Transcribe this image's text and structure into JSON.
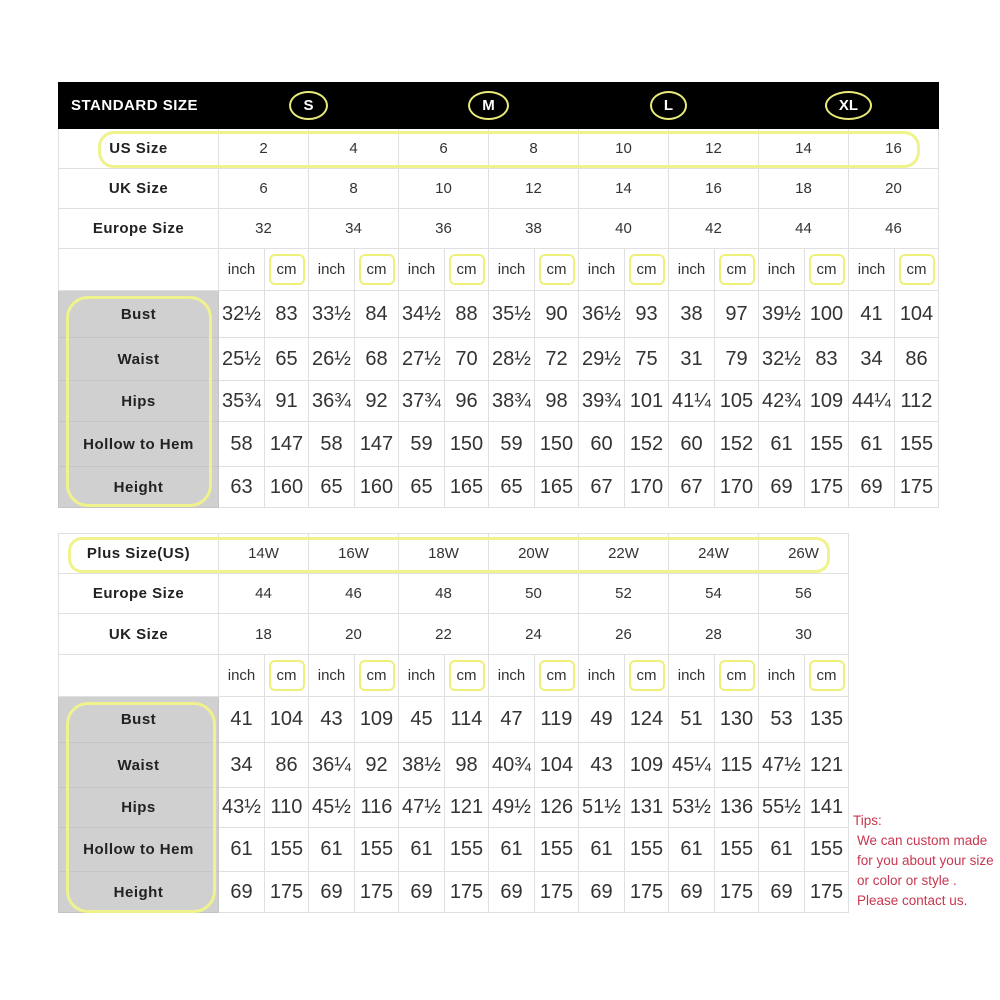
{
  "standard": {
    "title": "STANDARD SIZE",
    "groups": [
      "S",
      "M",
      "L",
      "XL"
    ],
    "size_rows": [
      {
        "label": "US Size",
        "values": [
          "2",
          "4",
          "6",
          "8",
          "10",
          "12",
          "14",
          "16"
        ]
      },
      {
        "label": "UK Size",
        "values": [
          "6",
          "8",
          "10",
          "12",
          "14",
          "16",
          "18",
          "20"
        ]
      },
      {
        "label": "Europe Size",
        "values": [
          "32",
          "34",
          "36",
          "38",
          "40",
          "42",
          "44",
          "46"
        ]
      }
    ],
    "units": [
      "inch",
      "cm"
    ],
    "measurements": [
      {
        "label": "Bust",
        "values": [
          "32½",
          "83",
          "33½",
          "84",
          "34½",
          "88",
          "35½",
          "90",
          "36½",
          "93",
          "38",
          "97",
          "39½",
          "100",
          "41",
          "104"
        ]
      },
      {
        "label": "Waist",
        "values": [
          "25½",
          "65",
          "26½",
          "68",
          "27½",
          "70",
          "28½",
          "72",
          "29½",
          "75",
          "31",
          "79",
          "32½",
          "83",
          "34",
          "86"
        ]
      },
      {
        "label": "Hips",
        "values": [
          "35¾",
          "91",
          "36¾",
          "92",
          "37¾",
          "96",
          "38¾",
          "98",
          "39¾",
          "101",
          "41¼",
          "105",
          "42¾",
          "109",
          "44¼",
          "112"
        ]
      },
      {
        "label": "Hollow to Hem",
        "values": [
          "58",
          "147",
          "58",
          "147",
          "59",
          "150",
          "59",
          "150",
          "60",
          "152",
          "60",
          "152",
          "61",
          "155",
          "61",
          "155"
        ]
      },
      {
        "label": "Height",
        "values": [
          "63",
          "160",
          "65",
          "160",
          "65",
          "165",
          "65",
          "165",
          "67",
          "170",
          "67",
          "170",
          "69",
          "175",
          "69",
          "175"
        ]
      }
    ]
  },
  "plus": {
    "size_rows": [
      {
        "label": "Plus Size(US)",
        "values": [
          "14W",
          "16W",
          "18W",
          "20W",
          "22W",
          "24W",
          "26W"
        ]
      },
      {
        "label": "Europe Size",
        "values": [
          "44",
          "46",
          "48",
          "50",
          "52",
          "54",
          "56"
        ]
      },
      {
        "label": "UK Size",
        "values": [
          "18",
          "20",
          "22",
          "24",
          "26",
          "28",
          "30"
        ]
      }
    ],
    "units": [
      "inch",
      "cm"
    ],
    "measurements": [
      {
        "label": "Bust",
        "values": [
          "41",
          "104",
          "43",
          "109",
          "45",
          "114",
          "47",
          "119",
          "49",
          "124",
          "51",
          "130",
          "53",
          "135"
        ]
      },
      {
        "label": "Waist",
        "values": [
          "34",
          "86",
          "36¼",
          "92",
          "38½",
          "98",
          "40¾",
          "104",
          "43",
          "109",
          "45¼",
          "115",
          "47½",
          "121"
        ]
      },
      {
        "label": "Hips",
        "values": [
          "43½",
          "110",
          "45½",
          "116",
          "47½",
          "121",
          "49½",
          "126",
          "51½",
          "131",
          "53½",
          "136",
          "55½",
          "141"
        ]
      },
      {
        "label": "Hollow to Hem",
        "values": [
          "61",
          "155",
          "61",
          "155",
          "61",
          "155",
          "61",
          "155",
          "61",
          "155",
          "61",
          "155",
          "61",
          "155"
        ]
      },
      {
        "label": "Height",
        "values": [
          "69",
          "175",
          "69",
          "175",
          "69",
          "175",
          "69",
          "175",
          "69",
          "175",
          "69",
          "175",
          "69",
          "175"
        ]
      }
    ]
  },
  "tips": {
    "title": "Tips:",
    "lines": [
      "We can custom made",
      "for you about your size",
      "or color or style .",
      "Please contact us."
    ]
  },
  "colors": {
    "highlight": "#f0f28c",
    "tips_text": "#c8374f",
    "header_bg": "#000000",
    "label_bg": "#d0d0d0"
  }
}
